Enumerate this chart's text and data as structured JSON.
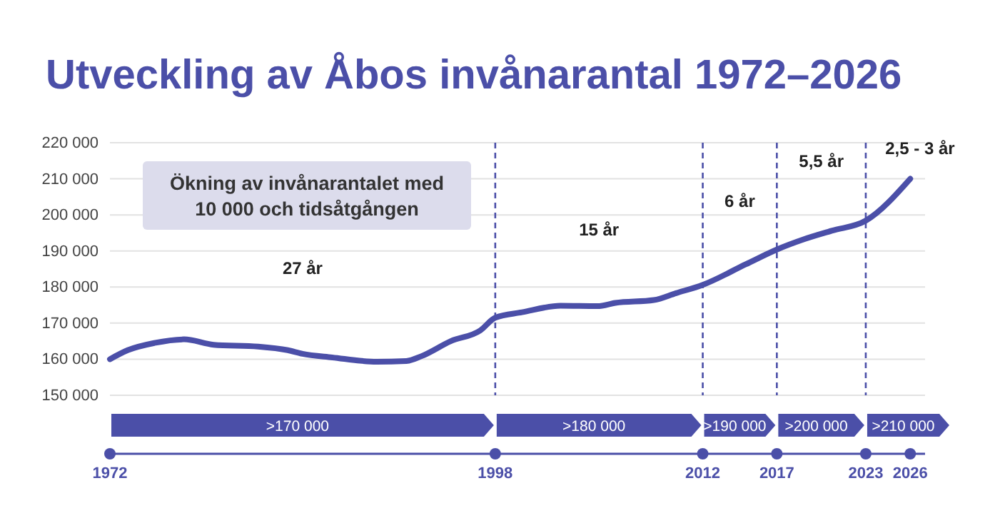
{
  "chart_data": {
    "type": "line",
    "title": "Utveckling av Åbos invånarantal 1972–2026",
    "series": [
      {
        "color": "#4b4fa8",
        "x": [
          1972,
          1973.2,
          1975,
          1977,
          1979,
          1982,
          1984,
          1985,
          1987,
          1990,
          1992,
          1993,
          1995,
          1997,
          1998,
          1999.8,
          2002.4,
          2004.9,
          2006.1,
          2008.7,
          2010.2,
          2012,
          2014.9,
          2017,
          2018.8,
          2020.7,
          2023,
          2026
        ],
        "values": [
          160000,
          162500,
          164500,
          165500,
          164000,
          163500,
          162500,
          161500,
          160500,
          159300,
          159500,
          160800,
          165000,
          168000,
          171500,
          173000,
          174800,
          174700,
          175600,
          176400,
          178300,
          180600,
          186300,
          190400,
          193200,
          195600,
          198400,
          210000
        ]
      }
    ],
    "xlim": [
      1972,
      2027
    ],
    "xticks": [
      1972,
      1998,
      2012,
      2017,
      2023,
      2026
    ],
    "ylim": [
      150000,
      220000
    ],
    "yticks": [
      {
        "value": 150000,
        "label": "150 000"
      },
      {
        "value": 160000,
        "label": "160 000"
      },
      {
        "value": 170000,
        "label": "170 000"
      },
      {
        "value": 180000,
        "label": "180 000"
      },
      {
        "value": 190000,
        "label": "190 000"
      },
      {
        "value": 200000,
        "label": "200 000"
      },
      {
        "value": 210000,
        "label": "210 000"
      },
      {
        "value": 220000,
        "label": "220 000"
      }
    ],
    "grid": "y",
    "marker": "none",
    "line_style": "solid",
    "ref_lines": [
      {
        "axis": "x",
        "value": 1998,
        "color": "#4b4fa8",
        "line_style": "dashed"
      },
      {
        "axis": "x",
        "value": 2012,
        "color": "#4b4fa8",
        "line_style": "dashed"
      },
      {
        "axis": "x",
        "value": 2017,
        "color": "#4b4fa8",
        "line_style": "dashed"
      },
      {
        "axis": "x",
        "value": 2023,
        "color": "#4b4fa8",
        "line_style": "dashed"
      }
    ],
    "annotations": [
      "Ökning av invånarantalet med 10 000 och tidsåtgången",
      "27 år",
      "15 år",
      "6 år",
      "5,5 år",
      "2,5 - 3 år",
      ">170 000",
      ">180 000",
      ">190 000",
      ">200 000",
      ">210 000"
    ]
  }
}
